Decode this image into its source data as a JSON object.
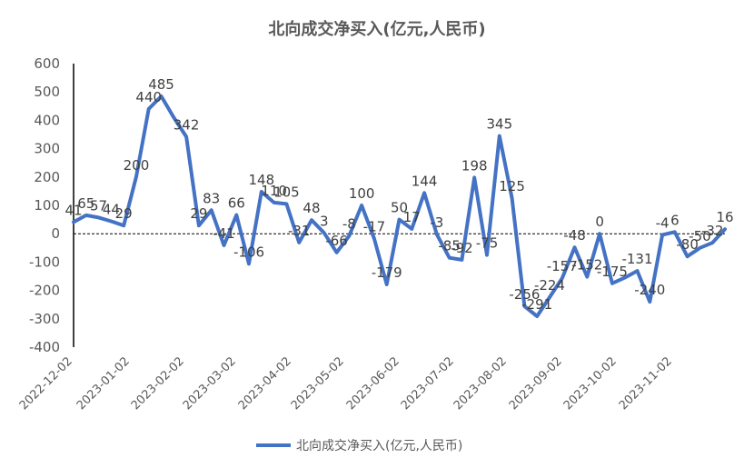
{
  "chart_data": {
    "type": "line",
    "title": "北向成交净买入(亿元,人民币)",
    "ylim": [
      -400,
      600
    ],
    "y_ticks": [
      600,
      500,
      400,
      300,
      200,
      100,
      0,
      -100,
      -200,
      -300,
      -400
    ],
    "x_tick_labels": [
      "2022-12-02",
      "2023-01-02",
      "2023-02-02",
      "2023-03-02",
      "2023-04-02",
      "2023-05-02",
      "2023-06-02",
      "2023-07-02",
      "2023-08-02",
      "2023-09-02",
      "2023-10-02",
      "2023-11-02"
    ],
    "zero_line": "dashed",
    "legend_position": "bottom",
    "color": "#4472C4",
    "series": [
      {
        "name": "北向成交净买入(亿元,人民币)",
        "values": [
          41,
          65,
          57,
          44,
          29,
          200,
          440,
          485,
          410,
          342,
          29,
          83,
          -41,
          66,
          -106,
          148,
          110,
          105,
          -31,
          48,
          3,
          -66,
          -8,
          100,
          -17,
          -179,
          50,
          17,
          144,
          -3,
          -85,
          -92,
          198,
          -75,
          345,
          125,
          -256,
          -291,
          -224,
          -157,
          -48,
          -152,
          0,
          -175,
          -155,
          -131,
          -240,
          -4,
          6,
          -80,
          -50,
          -32,
          16
        ]
      }
    ],
    "labels": [
      "41",
      "65",
      "57",
      "44",
      "29",
      "200",
      "440",
      "485",
      "",
      "342",
      "29",
      "83",
      "-41",
      "66",
      "-106",
      "148",
      "110",
      "105",
      "-31",
      "48",
      "3",
      "-66",
      "-8",
      "100",
      "-17",
      "-179",
      "50",
      "17",
      "144",
      "-3",
      "-85",
      "-92",
      "198",
      "-75",
      "345",
      "125",
      "-256",
      "-291",
      "-224",
      "-157",
      "-48",
      "-152",
      "0",
      "-175",
      "",
      "-131",
      "-240",
      "-4",
      "6",
      "-80",
      "-50",
      "-32",
      "16"
    ]
  }
}
